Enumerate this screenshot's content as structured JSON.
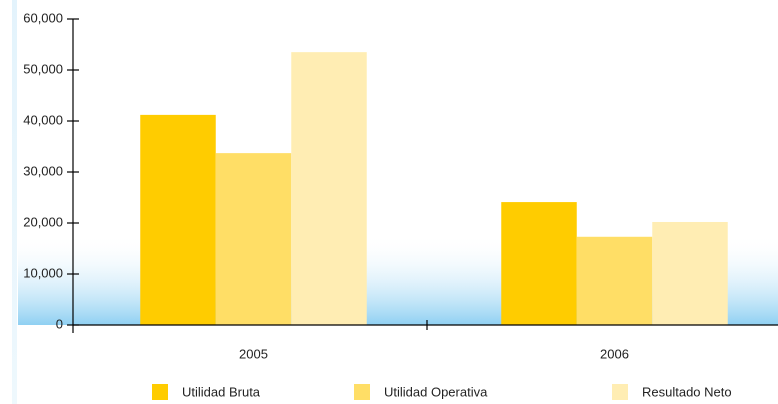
{
  "chart_data": {
    "type": "bar",
    "categories": [
      "2005",
      "2006"
    ],
    "series": [
      {
        "name": "Utilidad Bruta",
        "color": "#ffcc00",
        "values": [
          41200,
          24100
        ]
      },
      {
        "name": "Utilidad Operativa",
        "color": "#ffde66",
        "values": [
          33700,
          17300
        ]
      },
      {
        "name": "Resultado Neto",
        "color": "#ffedb3",
        "values": [
          53500,
          20200
        ]
      }
    ],
    "ylim": [
      0,
      60000
    ],
    "yticks": [
      0,
      {
        "value": 10000,
        "label": "10,000"
      },
      {
        "value": 20000,
        "label": "20,000"
      },
      {
        "value": 30000,
        "label": "30,000"
      },
      {
        "value": 40000,
        "label": "40,000"
      },
      {
        "value": 50000,
        "label": "50,000"
      },
      {
        "value": 60000,
        "label": "60,000"
      }
    ],
    "legend": "bottom"
  }
}
